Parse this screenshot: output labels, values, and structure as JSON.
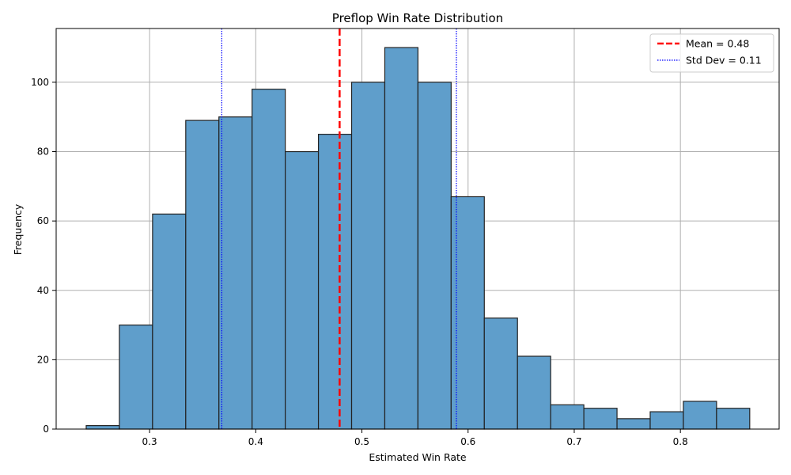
{
  "chart_data": {
    "type": "bar",
    "subtype": "histogram",
    "title": "Preflop Win Rate Distribution",
    "xlabel": "Estimated Win Rate",
    "ylabel": "Frequency",
    "xlim": [
      0.212,
      0.893
    ],
    "ylim": [
      0,
      115.5
    ],
    "xticks": [
      0.3,
      0.4,
      0.5,
      0.6,
      0.7,
      0.8
    ],
    "xtick_labels": [
      "0.3",
      "0.4",
      "0.5",
      "0.6",
      "0.7",
      "0.8"
    ],
    "yticks": [
      0,
      20,
      40,
      60,
      80,
      100
    ],
    "ytick_labels": [
      "0",
      "20",
      "40",
      "60",
      "80",
      "100"
    ],
    "grid": true,
    "bins": {
      "start": 0.2403,
      "width": 0.03125,
      "counts": [
        1,
        30,
        62,
        89,
        90,
        98,
        80,
        85,
        100,
        110,
        100,
        67,
        32,
        21,
        7,
        6,
        3,
        5,
        8,
        6
      ]
    },
    "reference_lines": [
      {
        "name": "Mean = 0.48",
        "x": 0.479,
        "style": "dashed",
        "color": "#ff0000"
      },
      {
        "name": "Std Dev = 0.11",
        "x": 0.368,
        "style": "dotted",
        "color": "#0000ff"
      },
      {
        "name": "Std Dev = 0.11",
        "x": 0.589,
        "style": "dotted",
        "color": "#0000ff"
      }
    ],
    "legend": {
      "placement": "top-right",
      "entries": [
        {
          "label": "Mean = 0.48",
          "style": "dashed",
          "color": "#ff0000"
        },
        {
          "label": "Std Dev = 0.11",
          "style": "dotted",
          "color": "#0000ff"
        }
      ]
    },
    "colors": {
      "bar_fill": "#5f9ecb",
      "bar_edge": "#222222",
      "grid": "#b0b0b0"
    }
  }
}
